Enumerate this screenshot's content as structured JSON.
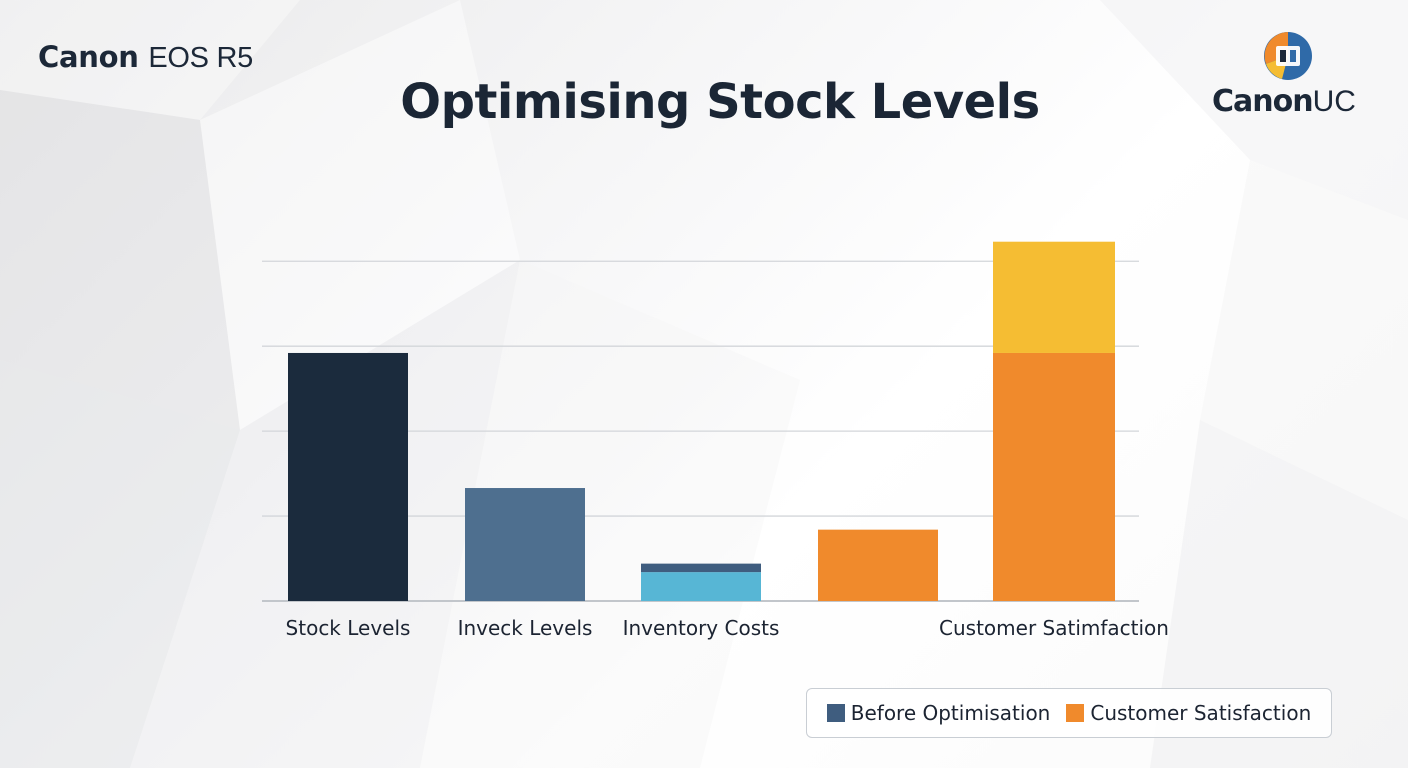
{
  "header": {
    "brand_name": "Canon",
    "brand_model": "EOS R5",
    "title": "Optimising Stock Levels",
    "logo_name": "Canon",
    "logo_suffix": "UC",
    "logo_icon": "canon-uc-logo-icon"
  },
  "chart_data": {
    "type": "bar",
    "title": "Optimising Stock Levels",
    "xlabel": "",
    "ylabel": "",
    "ylim": [
      0,
      4.25
    ],
    "grid": true,
    "legend_placement": "bottom-right",
    "categories": [
      "Stock Levels",
      "Inveck Levels",
      "Inventory Costs",
      "",
      "Customer Satimfaction"
    ],
    "bars": [
      {
        "category_index": 0,
        "segments": [
          {
            "value": 2.92,
            "color": "#1b2b3d"
          }
        ]
      },
      {
        "category_index": 1,
        "segments": [
          {
            "value": 1.33,
            "color": "#4e6f8f"
          }
        ]
      },
      {
        "category_index": 2,
        "segments": [
          {
            "value": 0.34,
            "color": "#57b6d5"
          },
          {
            "value": 0.1,
            "color": "#3f5d7f"
          }
        ]
      },
      {
        "category_index": 3,
        "segments": [
          {
            "value": 0.84,
            "color": "#f08a2c"
          }
        ]
      },
      {
        "category_index": 4,
        "segments": [
          {
            "value": 2.92,
            "color": "#f08a2c"
          },
          {
            "value": 1.31,
            "color": "#f5bd33"
          }
        ]
      }
    ],
    "legend": [
      {
        "label": "Before Optimisation",
        "color": "#3f5d7f"
      },
      {
        "label": "Customer Satisfaction",
        "color": "#f08a2c"
      }
    ]
  }
}
